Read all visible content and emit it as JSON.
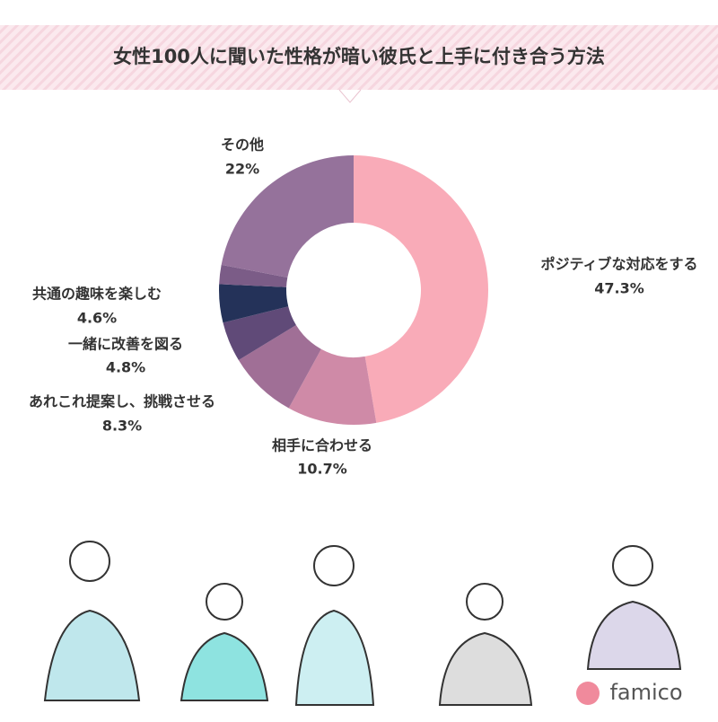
{
  "chart_data": {
    "type": "donut",
    "title": "女性100人に聞いた性格が暗い彼氏と上手に付き合う方法",
    "categories": [
      "ポジティブな対応をする",
      "相手に合わせる",
      "あれこれ提案し、挑戦させる",
      "一緒に改善を図る",
      "共通の趣味を楽しむ",
      null,
      "その他"
    ],
    "values": [
      47.3,
      10.7,
      8.3,
      4.8,
      4.6,
      2.3,
      22
    ],
    "value_labels": [
      "47.3%",
      "10.7%",
      "8.3%",
      "4.8%",
      "4.6%",
      null,
      "22%"
    ],
    "colors": [
      "#f9abb8",
      "#cf8aa7",
      "#a06f96",
      "#604a78",
      "#243259",
      "#7b5c87",
      "#95729b"
    ]
  },
  "brand": "famico"
}
